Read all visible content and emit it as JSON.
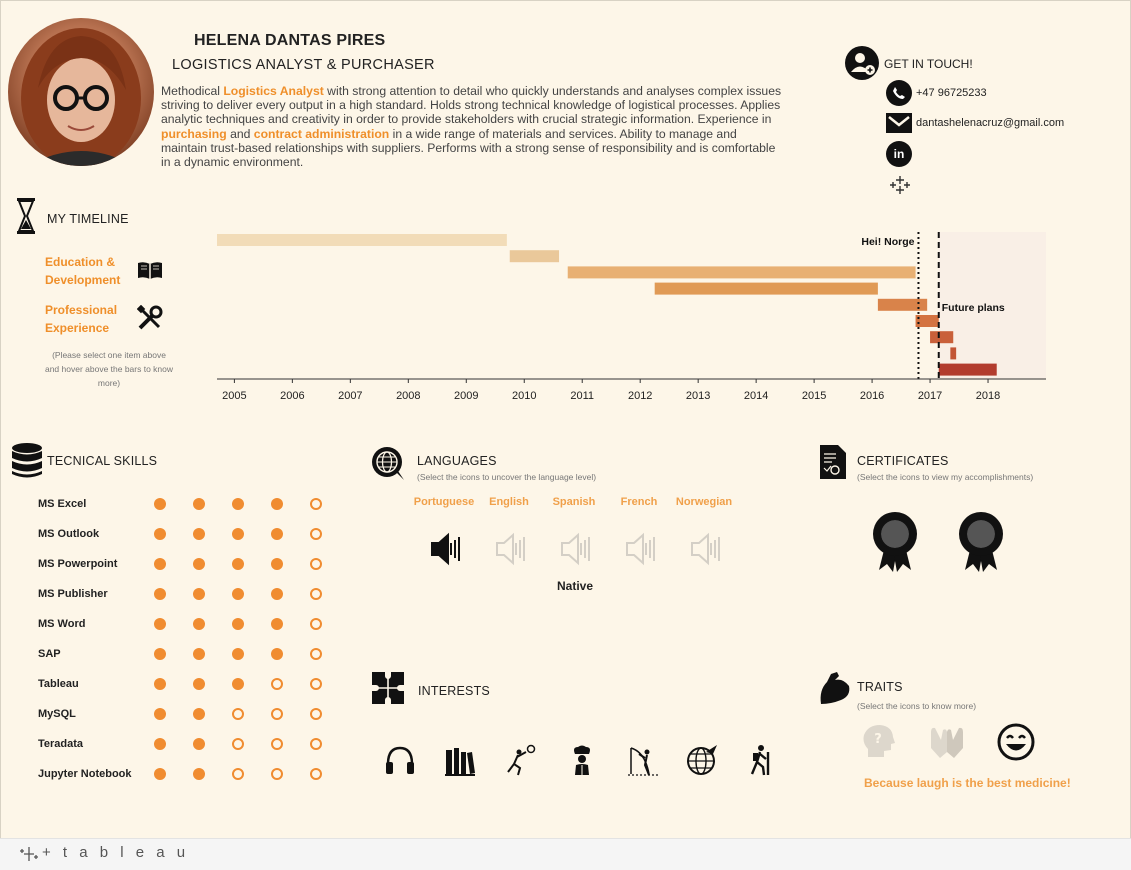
{
  "header": {
    "name": "HELENA DANTAS PIRES",
    "role": "LOGISTICS ANALYST & PURCHASER",
    "bio": {
      "p1": "Methodical ",
      "h1": "Logistics Analyst",
      "p2": " with strong attention to detail who quickly understands and analyses complex issues striving to deliver every output in a high standard. Holds strong technical knowledge of logistical processes. Applies analytic techniques and creativity in order to provide stakeholders with crucial strategic information. Experience in ",
      "h2": "purchasing",
      "p3": " and ",
      "h3": "contract administration",
      "p4": " in a wide range of materials and services. Ability to manage and maintain trust-based relationships with suppliers. Performs with a strong sense of responsibility and is comfortable in a dynamic environment."
    }
  },
  "contact": {
    "title": "GET IN TOUCH!",
    "phone": "+47 96725233",
    "email": "dantashelenacruz@gmail.com",
    "linkedin_glyph": "in"
  },
  "timeline": {
    "title": "MY TIMELINE",
    "legend": {
      "education": "Education & Development",
      "professional": "Professional Experience"
    },
    "hint": "(Please select one item above and hover above the bars to know more)",
    "annotations": {
      "hei_norge": "Hei! Norge",
      "future": "Future plans"
    },
    "chart_data": {
      "type": "gantt",
      "x_ticks": [
        "2005",
        "2006",
        "2007",
        "2008",
        "2009",
        "2010",
        "2011",
        "2012",
        "2013",
        "2014",
        "2015",
        "2016",
        "2017",
        "2018"
      ],
      "xlim": [
        2004.7,
        2019.0
      ],
      "bars": [
        {
          "start": 2004.7,
          "end": 2009.7,
          "color": "#f2dcb8"
        },
        {
          "start": 2009.75,
          "end": 2010.6,
          "color": "#eac89a"
        },
        {
          "start": 2010.75,
          "end": 2016.75,
          "color": "#e8b073"
        },
        {
          "start": 2012.25,
          "end": 2016.1,
          "color": "#e09a55"
        },
        {
          "start": 2016.1,
          "end": 2016.95,
          "color": "#d9834a"
        },
        {
          "start": 2016.75,
          "end": 2017.15,
          "color": "#d47340"
        },
        {
          "start": 2017.0,
          "end": 2017.4,
          "color": "#c9603a"
        },
        {
          "start": 2017.35,
          "end": 2017.45,
          "color": "#c25535"
        },
        {
          "start": 2017.15,
          "end": 2018.15,
          "color": "#b23c2e"
        }
      ],
      "markers": [
        {
          "x": 2016.8,
          "style": "dotted",
          "label": "Hei! Norge"
        },
        {
          "x": 2017.15,
          "style": "dashed",
          "label": "Future plans"
        }
      ],
      "future_shade_start": 2017.15
    }
  },
  "skills": {
    "title": "TECNICAL SKILLS",
    "items": [
      {
        "name": "MS Excel",
        "level": 4
      },
      {
        "name": "MS Outlook",
        "level": 4
      },
      {
        "name": "MS Powerpoint",
        "level": 4
      },
      {
        "name": "MS Publisher",
        "level": 4
      },
      {
        "name": "MS Word",
        "level": 4
      },
      {
        "name": "SAP",
        "level": 4
      },
      {
        "name": "Tableau",
        "level": 3
      },
      {
        "name": "MySQL",
        "level": 2
      },
      {
        "name": "Teradata",
        "level": 2
      },
      {
        "name": "Jupyter Notebook",
        "level": 2
      }
    ],
    "max": 5
  },
  "languages": {
    "title": "LANGUAGES",
    "subtitle": "(Select the icons to uncover the language level)",
    "items": [
      "Portuguese",
      "English",
      "Spanish",
      "French",
      "Norwegian"
    ],
    "selected_level": "Native"
  },
  "interests": {
    "title": "INTERESTS",
    "icons": [
      "headphones-icon",
      "books-icon",
      "volleyball-icon",
      "chef-icon",
      "fishing-icon",
      "travel-globe-icon",
      "hiking-icon"
    ]
  },
  "certificates": {
    "title": "CERTIFICATES",
    "subtitle": "(Select the icons to view my accomplishments)"
  },
  "traits": {
    "title": "TRAITS",
    "subtitle": "(Select the icons to know more)",
    "message": "Because laugh is the best medicine!"
  },
  "footer": {
    "brand": "+ t a b l e a u"
  }
}
